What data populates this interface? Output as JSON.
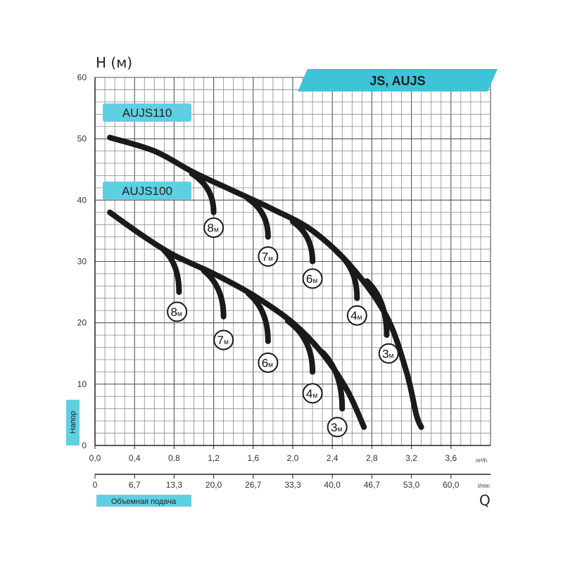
{
  "chart_data": {
    "type": "line",
    "title": "JS, AUJS",
    "ylabel": "H (м)",
    "xlabel": "Q",
    "x_unit": "m³/h",
    "x2_unit": "l/min",
    "ylim": [
      0,
      60
    ],
    "xlim": [
      0,
      4.0
    ],
    "y_ticks": [
      "0",
      "10",
      "20",
      "30",
      "40",
      "50",
      "60"
    ],
    "x_ticks": [
      "0,0",
      "0,4",
      "0,8",
      "1,2",
      "1,6",
      "2,0",
      "2,4",
      "2,8",
      "3,2",
      "3,6"
    ],
    "x2_ticks": [
      "0",
      "6,7",
      "13,3",
      "20,0",
      "26,7",
      "33,3",
      "40,0",
      "46,7",
      "53,0",
      "60,0"
    ],
    "side_label": "Напор",
    "bottom_label": "Объемная подача",
    "grid": true,
    "series": [
      {
        "name": "AUJS110",
        "points": [
          [
            0.15,
            50.2
          ],
          [
            0.6,
            48.0
          ],
          [
            1.0,
            44.5
          ],
          [
            1.4,
            41.5
          ],
          [
            1.8,
            38.5
          ],
          [
            2.2,
            35
          ],
          [
            2.6,
            29
          ],
          [
            2.95,
            21
          ],
          [
            3.15,
            12
          ],
          [
            3.25,
            5
          ],
          [
            3.3,
            3
          ]
        ],
        "branches": [
          {
            "label": "8",
            "unit": "м",
            "from": [
              0.98,
              44.3
            ],
            "to": [
              1.2,
              38
            ],
            "badge": [
              1.2,
              35.5
            ]
          },
          {
            "label": "7",
            "unit": "м",
            "from": [
              1.55,
              40.2
            ],
            "to": [
              1.75,
              34
            ],
            "badge": [
              1.75,
              30.8
            ]
          },
          {
            "label": "6",
            "unit": "м",
            "from": [
              2.0,
              36.5
            ],
            "to": [
              2.2,
              30
            ],
            "badge": [
              2.2,
              27.2
            ]
          },
          {
            "label": "4",
            "unit": "м",
            "from": [
              2.45,
              31.5
            ],
            "to": [
              2.65,
              24
            ],
            "badge": [
              2.65,
              21.2
            ]
          },
          {
            "label": "3",
            "unit": "м",
            "from": [
              2.75,
              26.8
            ],
            "to": [
              2.95,
              18
            ],
            "badge": [
              2.97,
              15
            ]
          }
        ]
      },
      {
        "name": "AUJS100",
        "points": [
          [
            0.15,
            38
          ],
          [
            0.5,
            34
          ],
          [
            0.8,
            31
          ],
          [
            1.2,
            28
          ],
          [
            1.6,
            24.5
          ],
          [
            2.0,
            20
          ],
          [
            2.3,
            15
          ],
          [
            2.55,
            9
          ],
          [
            2.72,
            3
          ]
        ],
        "branches": [
          {
            "label": "8",
            "unit": "м",
            "from": [
              0.7,
              31.8
            ],
            "to": [
              0.85,
              25
            ],
            "badge": [
              0.83,
              21.8
            ]
          },
          {
            "label": "7",
            "unit": "м",
            "from": [
              1.1,
              28.5
            ],
            "to": [
              1.3,
              21
            ],
            "badge": [
              1.3,
              17.2
            ]
          },
          {
            "label": "6",
            "unit": "м",
            "from": [
              1.55,
              24.8
            ],
            "to": [
              1.75,
              17
            ],
            "badge": [
              1.75,
              13.5
            ]
          },
          {
            "label": "4",
            "unit": "м",
            "from": [
              1.95,
              20.3
            ],
            "to": [
              2.2,
              12
            ],
            "badge": [
              2.2,
              8.5
            ]
          },
          {
            "label": "3",
            "unit": "м",
            "from": [
              2.3,
              15.2
            ],
            "to": [
              2.5,
              6
            ],
            "badge": [
              2.45,
              3
            ]
          }
        ]
      }
    ]
  }
}
